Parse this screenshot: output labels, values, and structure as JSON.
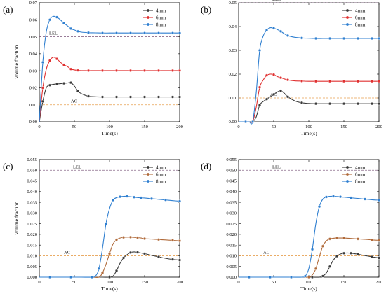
{
  "chart_data": [
    {
      "panel": "(a)",
      "type": "line",
      "xlabel": "Time(s)",
      "ylabel": "Volume fraction",
      "xlim": [
        0,
        200
      ],
      "ylim": [
        0,
        0.07
      ],
      "xticks": [
        0,
        50,
        100,
        150,
        200
      ],
      "yticks": [
        0,
        0.01,
        0.02,
        0.03,
        0.04,
        0.05,
        0.06,
        0.07
      ],
      "ytick_labels": [
        "0.00",
        "0.01",
        "0.02",
        "0.03",
        "0.04",
        "0.05",
        "0.06",
        "0.07"
      ],
      "legend_position": "top-right",
      "reference_lines": [
        {
          "label": "LEL",
          "value": 0.05,
          "color": "#8B6A8A"
        },
        {
          "label": "AC",
          "value": 0.01,
          "color": "#E8A050"
        }
      ],
      "series": [
        {
          "name": "4mm",
          "color": "#3a3a3a",
          "x": [
            0,
            5,
            10,
            15,
            20,
            25,
            30,
            35,
            40,
            45,
            50,
            55,
            60,
            70,
            80,
            90,
            100,
            110,
            120,
            130,
            140,
            150,
            160,
            170,
            180,
            190,
            200
          ],
          "y": [
            0,
            0.012,
            0.02,
            0.0215,
            0.022,
            0.0222,
            0.0224,
            0.0226,
            0.0228,
            0.023,
            0.021,
            0.018,
            0.0165,
            0.015,
            0.0147,
            0.0146,
            0.0146,
            0.0146,
            0.0146,
            0.0146,
            0.0146,
            0.0146,
            0.0146,
            0.0146,
            0.0146,
            0.0146,
            0.0146
          ]
        },
        {
          "name": "6mm",
          "color": "#e03030",
          "x": [
            0,
            5,
            10,
            15,
            20,
            25,
            30,
            35,
            40,
            45,
            50,
            55,
            60,
            70,
            80,
            90,
            100,
            110,
            120,
            130,
            140,
            150,
            160,
            170,
            180,
            190,
            200
          ],
          "y": [
            0,
            0.02,
            0.031,
            0.036,
            0.038,
            0.037,
            0.035,
            0.0335,
            0.0325,
            0.031,
            0.0305,
            0.0302,
            0.0301,
            0.0301,
            0.0301,
            0.0301,
            0.0301,
            0.0301,
            0.0301,
            0.0301,
            0.0301,
            0.0301,
            0.0301,
            0.0301,
            0.0301,
            0.0301,
            0.0301
          ]
        },
        {
          "name": "8mm",
          "color": "#2f7fd0",
          "x": [
            0,
            5,
            10,
            15,
            20,
            25,
            30,
            35,
            40,
            45,
            50,
            55,
            60,
            70,
            80,
            90,
            100,
            110,
            120,
            130,
            140,
            150,
            160,
            170,
            180,
            190,
            200
          ],
          "y": [
            0,
            0.035,
            0.053,
            0.06,
            0.062,
            0.0615,
            0.06,
            0.058,
            0.0565,
            0.0548,
            0.054,
            0.0532,
            0.0527,
            0.0524,
            0.0523,
            0.0522,
            0.0522,
            0.0522,
            0.0522,
            0.0522,
            0.0522,
            0.0522,
            0.0522,
            0.0522,
            0.0522,
            0.0522,
            0.0522
          ]
        }
      ]
    },
    {
      "panel": "(b)",
      "type": "line",
      "xlabel": "Time(s)",
      "ylabel": "",
      "xlim": [
        0,
        200
      ],
      "ylim": [
        0,
        0.05
      ],
      "xticks": [
        0,
        50,
        100,
        150,
        200
      ],
      "yticks": [
        0,
        0.01,
        0.02,
        0.03,
        0.04,
        0.05
      ],
      "ytick_labels": [
        "0.00",
        "0.01",
        "0.02",
        "0.03",
        "0.04",
        "0.05"
      ],
      "legend_position": "top-right",
      "reference_lines": [
        {
          "label": "LEL",
          "value": 0.05,
          "color": "#8B6A8A"
        },
        {
          "label": "AC",
          "value": 0.01,
          "color": "#E8A050"
        }
      ],
      "series": [
        {
          "name": "4mm",
          "color": "#3a3a3a",
          "x": [
            0,
            10,
            15,
            20,
            25,
            30,
            35,
            40,
            45,
            50,
            55,
            60,
            65,
            70,
            80,
            90,
            100,
            110,
            120,
            130,
            140,
            150,
            160,
            170,
            180,
            190,
            200
          ],
          "y": [
            0,
            0,
            0,
            0,
            0.002,
            0.007,
            0.0085,
            0.0095,
            0.0105,
            0.0115,
            0.0125,
            0.013,
            0.012,
            0.0105,
            0.0088,
            0.008,
            0.0077,
            0.0076,
            0.0076,
            0.0076,
            0.0076,
            0.0076,
            0.0076,
            0.0076,
            0.0076,
            0.0076,
            0.0076
          ]
        },
        {
          "name": "6mm",
          "color": "#e03030",
          "x": [
            0,
            10,
            15,
            20,
            25,
            30,
            35,
            40,
            45,
            50,
            55,
            60,
            65,
            70,
            80,
            90,
            100,
            110,
            120,
            130,
            140,
            150,
            160,
            170,
            180,
            190,
            200
          ],
          "y": [
            0,
            0,
            0,
            0,
            0.006,
            0.0145,
            0.0175,
            0.0195,
            0.02,
            0.0198,
            0.019,
            0.0185,
            0.018,
            0.0176,
            0.0172,
            0.0171,
            0.017,
            0.017,
            0.017,
            0.017,
            0.017,
            0.017,
            0.017,
            0.017,
            0.017,
            0.017,
            0.017
          ]
        },
        {
          "name": "8mm",
          "color": "#2f7fd0",
          "x": [
            0,
            10,
            15,
            20,
            25,
            30,
            35,
            40,
            45,
            50,
            55,
            60,
            65,
            70,
            80,
            90,
            100,
            110,
            120,
            130,
            140,
            150,
            160,
            170,
            180,
            190,
            200
          ],
          "y": [
            0,
            0,
            0,
            0,
            0.012,
            0.03,
            0.036,
            0.0385,
            0.0395,
            0.0393,
            0.0388,
            0.038,
            0.037,
            0.0362,
            0.0355,
            0.0352,
            0.0351,
            0.035,
            0.035,
            0.035,
            0.035,
            0.035,
            0.035,
            0.035,
            0.035,
            0.035,
            0.035
          ]
        }
      ]
    },
    {
      "panel": "(c)",
      "type": "line",
      "xlabel": "Time(s)",
      "ylabel": "Volume fraction",
      "xlim": [
        0,
        200
      ],
      "ylim": [
        0,
        0.055
      ],
      "xticks": [
        0,
        50,
        100,
        150,
        200
      ],
      "yticks": [
        0,
        0.005,
        0.01,
        0.015,
        0.02,
        0.025,
        0.03,
        0.035,
        0.04,
        0.045,
        0.05,
        0.055
      ],
      "ytick_labels": [
        "0.000",
        "0.005",
        "0.010",
        "0.015",
        "0.020",
        "0.025",
        "0.030",
        "0.035",
        "0.040",
        "0.045",
        "0.050",
        "0.055"
      ],
      "legend_position": "top-right",
      "reference_lines": [
        {
          "label": "LEL",
          "value": 0.05,
          "color": "#8B6A8A"
        },
        {
          "label": "AC",
          "value": 0.01,
          "color": "#E8A050"
        }
      ],
      "series": [
        {
          "name": "4mm",
          "color": "#3a3a3a",
          "x": [
            0,
            15,
            30,
            45,
            60,
            75,
            90,
            100,
            105,
            110,
            115,
            120,
            125,
            130,
            135,
            140,
            145,
            150,
            160,
            170,
            180,
            190,
            200
          ],
          "y": [
            0,
            0,
            0,
            0,
            0,
            0,
            0,
            0,
            0.0005,
            0.003,
            0.0065,
            0.009,
            0.0105,
            0.0115,
            0.0118,
            0.0116,
            0.0113,
            0.011,
            0.0102,
            0.0095,
            0.0088,
            0.0083,
            0.008
          ]
        },
        {
          "name": "6mm",
          "color": "#b06a3a",
          "x": [
            0,
            15,
            30,
            45,
            60,
            75,
            85,
            90,
            95,
            100,
            105,
            110,
            115,
            120,
            125,
            130,
            135,
            140,
            145,
            150,
            160,
            170,
            180,
            190,
            200
          ],
          "y": [
            0,
            0,
            0,
            0,
            0,
            0,
            0,
            0.002,
            0.006,
            0.011,
            0.0155,
            0.0175,
            0.0183,
            0.0186,
            0.0187,
            0.0187,
            0.0186,
            0.0185,
            0.0183,
            0.018,
            0.0178,
            0.0176,
            0.0174,
            0.0172,
            0.017
          ]
        },
        {
          "name": "8mm",
          "color": "#2f7fd0",
          "x": [
            0,
            15,
            30,
            45,
            60,
            75,
            80,
            85,
            90,
            95,
            100,
            105,
            110,
            115,
            120,
            125,
            130,
            135,
            140,
            145,
            150,
            160,
            170,
            180,
            190,
            200
          ],
          "y": [
            0,
            0,
            0,
            0,
            0,
            0,
            0.0005,
            0.004,
            0.0135,
            0.025,
            0.032,
            0.036,
            0.0372,
            0.0376,
            0.0378,
            0.0378,
            0.0376,
            0.0374,
            0.0372,
            0.0371,
            0.037,
            0.0367,
            0.0364,
            0.0361,
            0.0358,
            0.0355
          ]
        }
      ]
    },
    {
      "panel": "(d)",
      "type": "line",
      "xlabel": "Time(s)",
      "ylabel": "",
      "xlim": [
        0,
        200
      ],
      "ylim": [
        0,
        0.055
      ],
      "xticks": [
        0,
        50,
        100,
        150,
        200
      ],
      "yticks": [
        0,
        0.005,
        0.01,
        0.015,
        0.02,
        0.025,
        0.03,
        0.035,
        0.04,
        0.045,
        0.05,
        0.055
      ],
      "ytick_labels": [
        "0.000",
        "0.005",
        "0.010",
        "0.015",
        "0.020",
        "0.025",
        "0.030",
        "0.035",
        "0.040",
        "0.045",
        "0.050",
        "0.055"
      ],
      "legend_position": "top-right",
      "reference_lines": [
        {
          "label": "LEL",
          "value": 0.05,
          "color": "#8B6A8A"
        },
        {
          "label": "AC",
          "value": 0.01,
          "color": "#E8A050"
        }
      ],
      "series": [
        {
          "name": "4mm",
          "color": "#3a3a3a",
          "x": [
            0,
            15,
            30,
            45,
            60,
            75,
            90,
            105,
            115,
            120,
            125,
            130,
            135,
            140,
            145,
            150,
            155,
            160,
            165,
            170,
            180,
            190,
            200
          ],
          "y": [
            0,
            0,
            0,
            0,
            0,
            0,
            0,
            0,
            0,
            0.0005,
            0.002,
            0.005,
            0.008,
            0.0098,
            0.0108,
            0.0112,
            0.0113,
            0.0112,
            0.011,
            0.0107,
            0.0101,
            0.0095,
            0.009
          ]
        },
        {
          "name": "6mm",
          "color": "#b06a3a",
          "x": [
            0,
            15,
            30,
            45,
            60,
            75,
            90,
            100,
            105,
            110,
            115,
            120,
            125,
            130,
            135,
            140,
            145,
            150,
            160,
            170,
            180,
            190,
            200
          ],
          "y": [
            0,
            0,
            0,
            0,
            0,
            0,
            0,
            0,
            0.001,
            0.004,
            0.0095,
            0.0145,
            0.017,
            0.0179,
            0.0182,
            0.0183,
            0.0183,
            0.0183,
            0.0181,
            0.0179,
            0.0177,
            0.0174,
            0.0172
          ]
        },
        {
          "name": "8mm",
          "color": "#2f7fd0",
          "x": [
            0,
            15,
            30,
            45,
            60,
            75,
            90,
            95,
            100,
            105,
            110,
            115,
            120,
            125,
            130,
            135,
            140,
            145,
            150,
            160,
            170,
            180,
            190,
            200
          ],
          "y": [
            0,
            0,
            0,
            0,
            0,
            0,
            0,
            0.0005,
            0.004,
            0.013,
            0.025,
            0.033,
            0.0365,
            0.0375,
            0.0378,
            0.0378,
            0.0377,
            0.0376,
            0.0374,
            0.0371,
            0.0368,
            0.0365,
            0.0362,
            0.036
          ]
        }
      ]
    }
  ]
}
